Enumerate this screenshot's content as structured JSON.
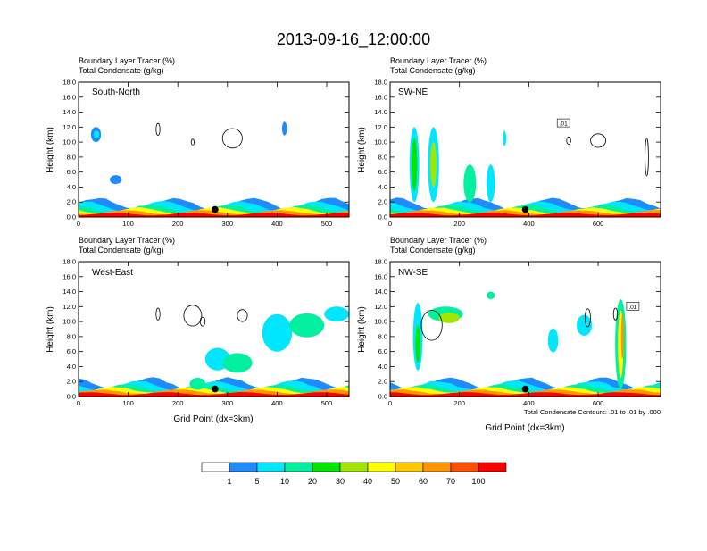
{
  "title": "2013-09-16_12:00:00",
  "panel_header": {
    "line1": "Boundary Layer Tracer   (%)",
    "line2": "Total Condensate   (g/kg)"
  },
  "ylabel": "Height (km)",
  "xlabel": "Grid Point (dx=3km)",
  "contour_note": "Total Condensate Contours: .01 to .01 by .000",
  "chart_data": [
    {
      "type": "heatmap",
      "name": "South-North",
      "xlim": [
        0,
        545
      ],
      "ylim": [
        0,
        18
      ],
      "xticks": [
        0,
        100,
        200,
        300,
        400,
        500
      ],
      "yticks": [
        "0.0",
        "2.0",
        "4.0",
        "6.0",
        "8.0",
        "10.0",
        "12.0",
        "14.0",
        "16.0",
        "18.0"
      ],
      "marker": {
        "x": 275,
        "y": 1.0
      },
      "contour_label": "",
      "show_xlabel": false
    },
    {
      "type": "heatmap",
      "name": "SW-NE",
      "xlim": [
        0,
        780
      ],
      "ylim": [
        0,
        18
      ],
      "xticks": [
        0,
        200,
        400,
        600
      ],
      "yticks": [
        "0.0",
        "2.0",
        "4.0",
        "6.0",
        "8.0",
        "10.0",
        "12.0",
        "14.0",
        "16.0",
        "18.0"
      ],
      "marker": {
        "x": 390,
        "y": 1.0
      },
      "contour_label": ".01",
      "show_xlabel": false
    },
    {
      "type": "heatmap",
      "name": "West-East",
      "xlim": [
        0,
        545
      ],
      "ylim": [
        0,
        18
      ],
      "xticks": [
        0,
        100,
        200,
        300,
        400,
        500
      ],
      "yticks": [
        "0.0",
        "2.0",
        "4.0",
        "6.0",
        "8.0",
        "10.0",
        "12.0",
        "14.0",
        "16.0",
        "18.0"
      ],
      "marker": {
        "x": 275,
        "y": 1.0
      },
      "contour_label": "",
      "show_xlabel": true
    },
    {
      "type": "heatmap",
      "name": "NW-SE",
      "xlim": [
        0,
        780
      ],
      "ylim": [
        0,
        18
      ],
      "xticks": [
        0,
        200,
        400,
        600
      ],
      "yticks": [
        "0.0",
        "2.0",
        "4.0",
        "6.0",
        "8.0",
        "10.0",
        "12.0",
        "14.0",
        "16.0",
        "18.0"
      ],
      "marker": {
        "x": 390,
        "y": 1.0
      },
      "contour_label": ".01",
      "show_xlabel": true
    }
  ],
  "colorbar": {
    "labels": [
      "1",
      "5",
      "10",
      "20",
      "30",
      "40",
      "50",
      "60",
      "70",
      "100"
    ],
    "colors": [
      "#ffffff",
      "#1e8cff",
      "#00e6ff",
      "#00f0a0",
      "#00e600",
      "#a0e600",
      "#ffff00",
      "#ffc800",
      "#ff9600",
      "#ff5000",
      "#ff0000"
    ]
  }
}
